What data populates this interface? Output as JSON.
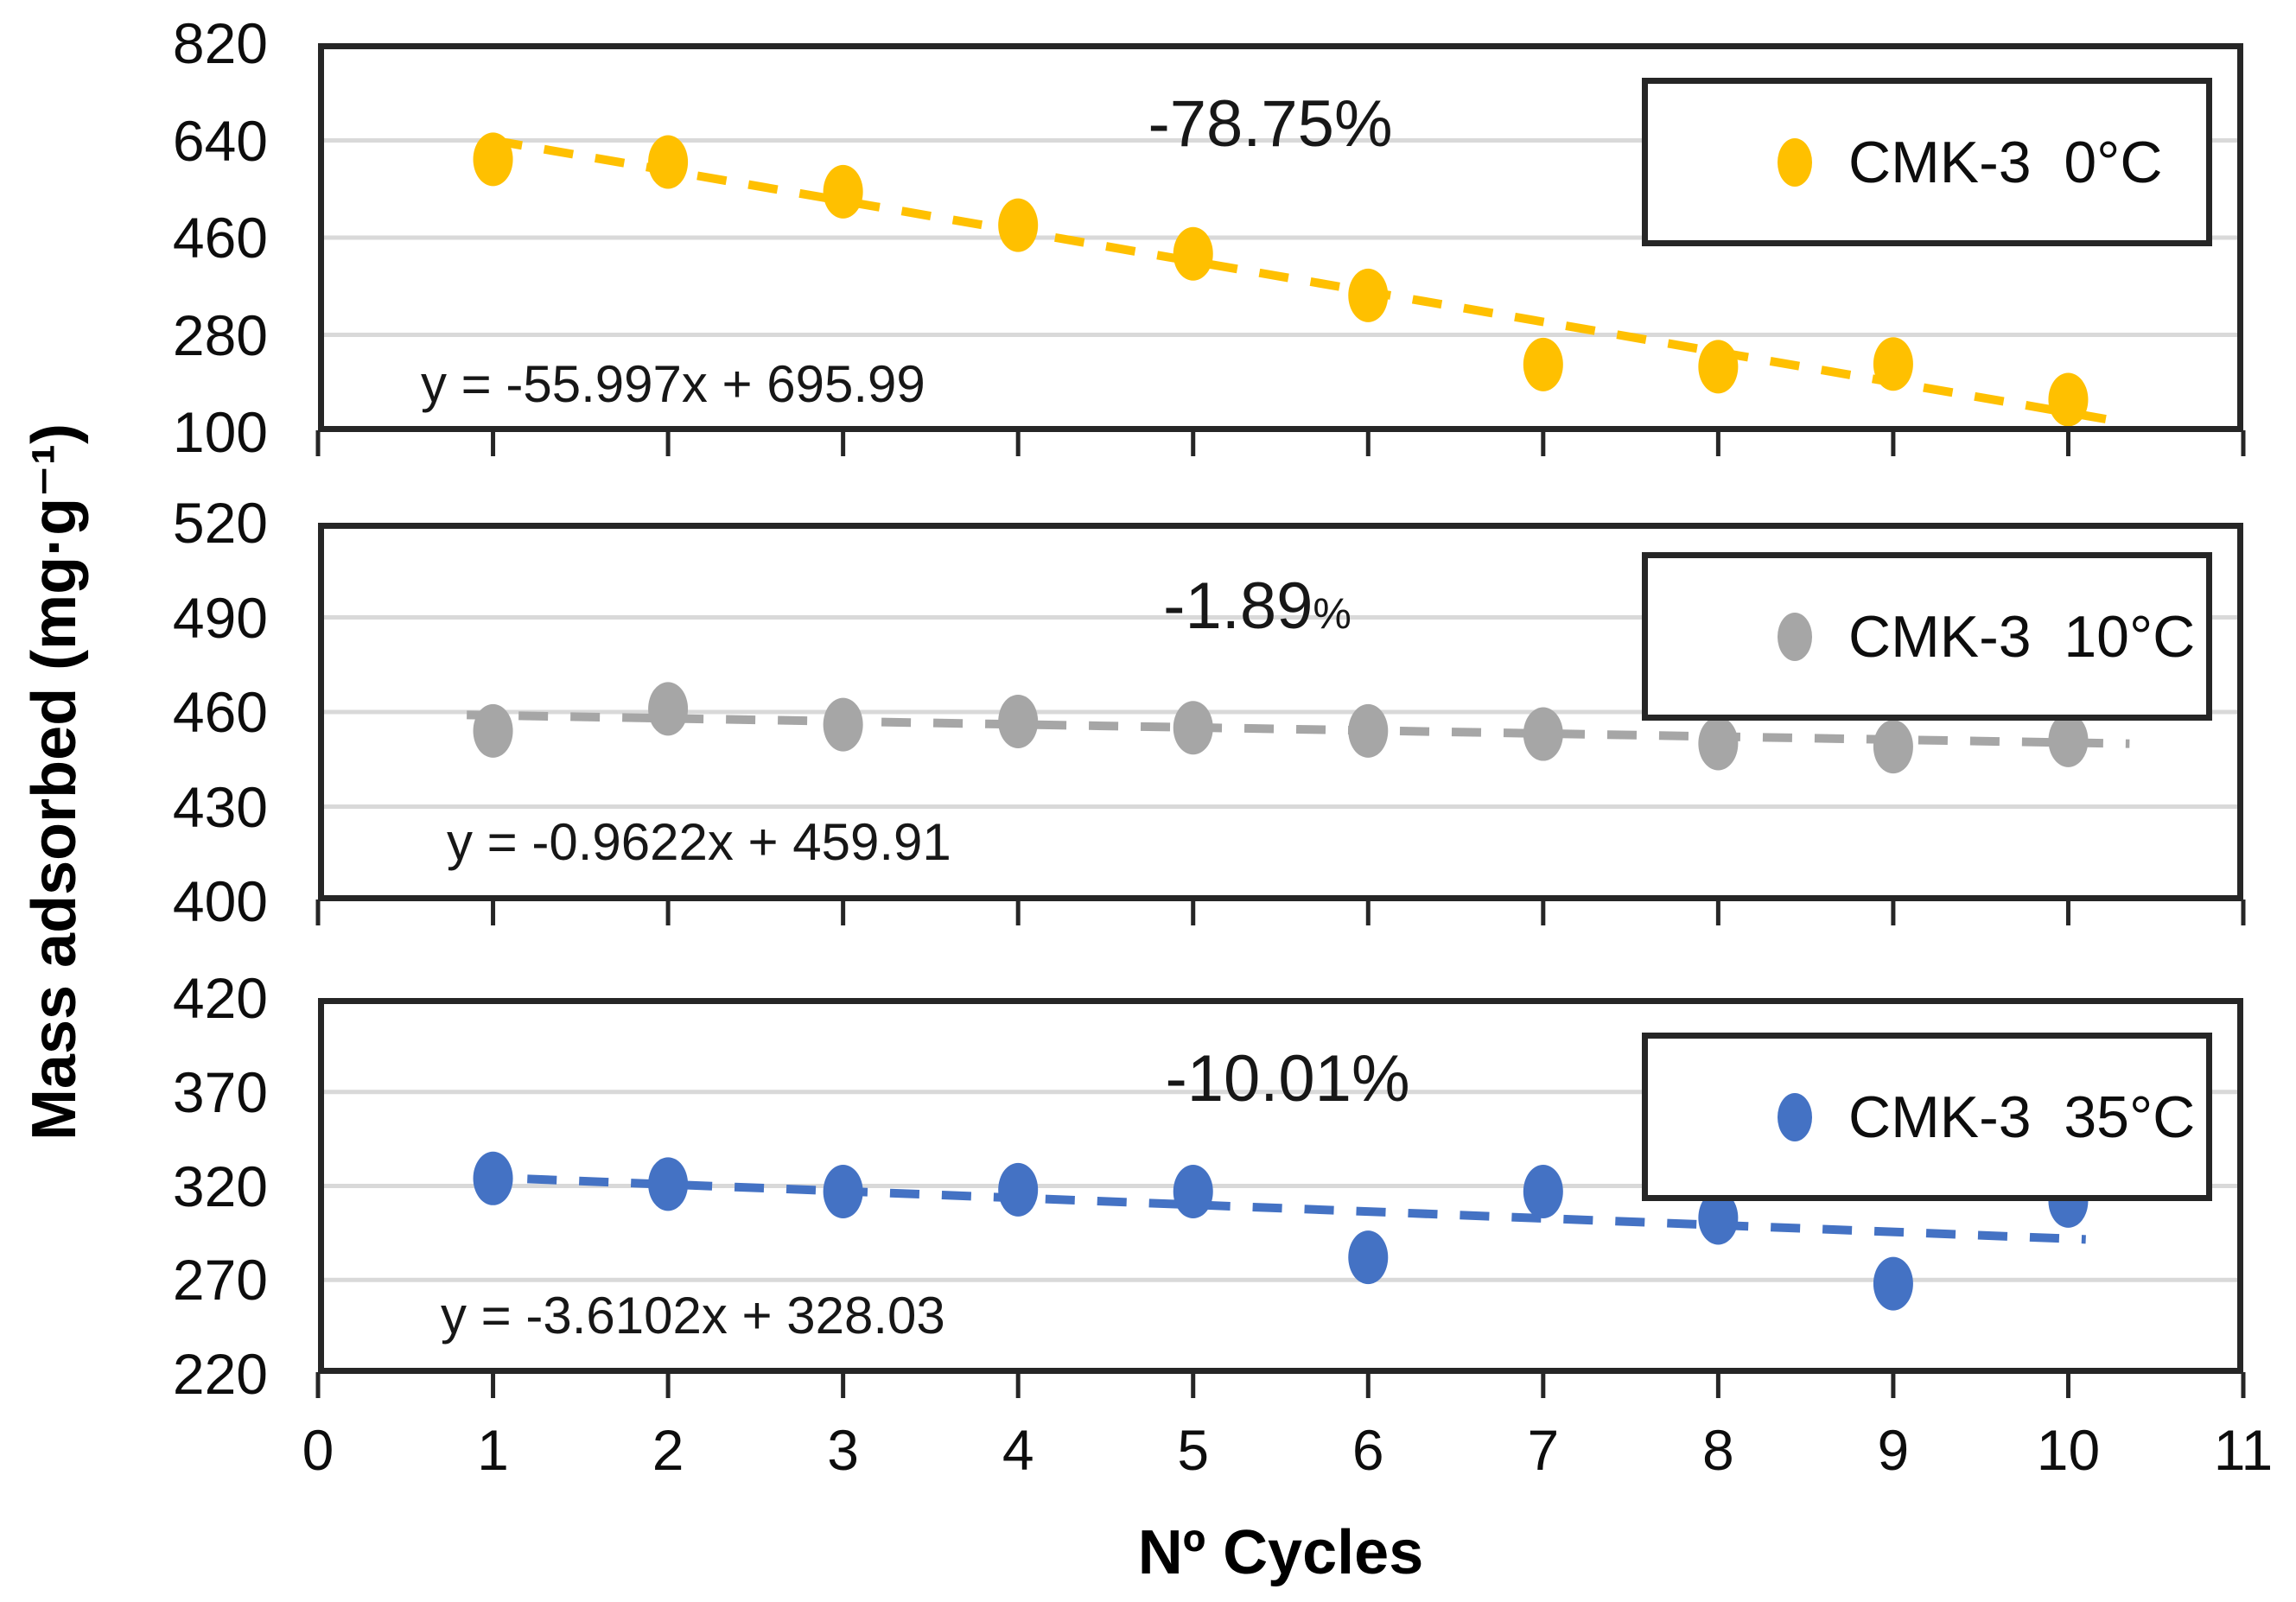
{
  "figure": {
    "y_axis_title": "Mass adsorbed (mg·g⁻¹)",
    "x_axis_title": "Nº Cycles"
  },
  "colors": {
    "series_0C": "#FFC000",
    "series_10C": "#A6A6A6",
    "series_35C": "#4472C4",
    "gridline": "#D9D9D9",
    "axis": "#262626"
  },
  "chart_data": [
    {
      "type": "scatter",
      "series_name": "CMK-3  0°C",
      "color": "#FFC000",
      "x": [
        1,
        2,
        3,
        4,
        5,
        6,
        7,
        8,
        9,
        10
      ],
      "values": [
        605,
        600,
        545,
        483,
        430,
        353,
        225,
        221,
        226,
        160
      ],
      "trendline": {
        "equation": "y = -55.997x + 695.99",
        "slope": -55.997,
        "intercept": 695.99,
        "x_start": 1.0,
        "x_end": 10.3,
        "style": "dashed"
      },
      "annotation": {
        "text": "-78.75%",
        "suffix": ""
      },
      "ylim": [
        100,
        820
      ],
      "y_ticks": [
        820,
        640,
        460,
        280,
        100
      ],
      "xlim": [
        0,
        11
      ],
      "x_ticks": [
        0,
        1,
        2,
        3,
        4,
        5,
        6,
        7,
        8,
        9,
        10,
        11
      ],
      "legend_position": "top-right",
      "grid": "horizontal"
    },
    {
      "type": "scatter",
      "series_name": "CMK-3  10°C",
      "color": "#A6A6A6",
      "x": [
        1,
        2,
        3,
        4,
        5,
        6,
        7,
        8,
        9,
        10
      ],
      "values": [
        454,
        461,
        456,
        457,
        455,
        454,
        453,
        450,
        449,
        451
      ],
      "trendline": {
        "equation": "y = -0.9622x + 459.91",
        "slope": -0.9622,
        "intercept": 459.91,
        "x_start": 0.85,
        "x_end": 10.35,
        "style": "dashed"
      },
      "annotation": {
        "text": "-1.89",
        "suffix": "%"
      },
      "ylim": [
        400,
        520
      ],
      "y_ticks": [
        520,
        490,
        460,
        430,
        400
      ],
      "xlim": [
        0,
        11
      ],
      "x_ticks": [
        0,
        1,
        2,
        3,
        4,
        5,
        6,
        7,
        8,
        9,
        10,
        11
      ],
      "legend_position": "top-right",
      "grid": "horizontal"
    },
    {
      "type": "scatter",
      "series_name": "CMK-3  35°C",
      "color": "#4472C4",
      "x": [
        1,
        2,
        3,
        4,
        5,
        6,
        7,
        8,
        9,
        10
      ],
      "values": [
        324,
        321,
        317,
        318,
        317,
        282,
        317,
        303,
        268,
        312
      ],
      "trendline": {
        "equation": "y = -3.6102x + 328.03",
        "slope": -3.6102,
        "intercept": 328.03,
        "x_start": 0.9,
        "x_end": 10.1,
        "style": "dashed"
      },
      "annotation": {
        "text": "-10.01%",
        "suffix": ""
      },
      "ylim": [
        220,
        420
      ],
      "y_ticks": [
        420,
        370,
        320,
        270,
        220
      ],
      "xlim": [
        0,
        11
      ],
      "x_ticks": [
        0,
        1,
        2,
        3,
        4,
        5,
        6,
        7,
        8,
        9,
        10,
        11
      ],
      "legend_position": "top-right",
      "grid": "horizontal"
    }
  ]
}
